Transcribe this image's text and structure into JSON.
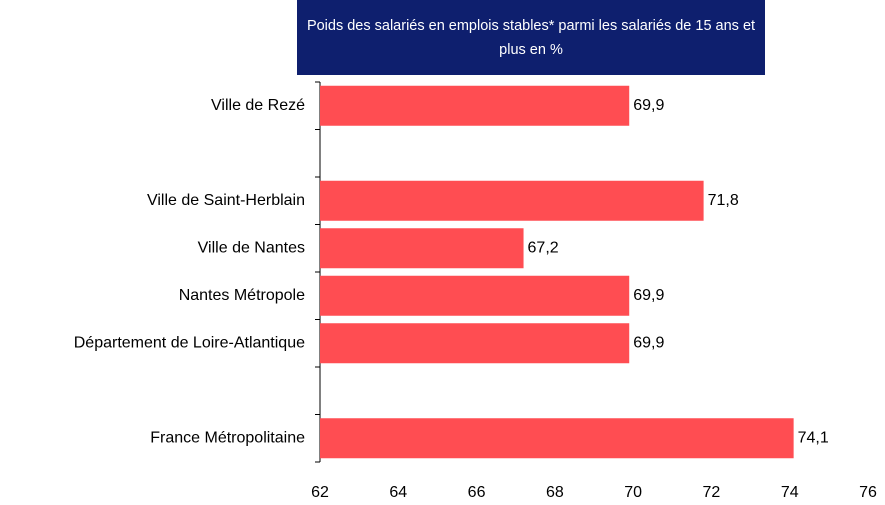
{
  "chart_data": {
    "type": "bar",
    "orientation": "horizontal",
    "title": "Poids des salariés en emplois stables* parmi les salariés de 15 ans et plus en %",
    "categories": [
      "Ville de Rezé",
      null,
      "Ville de Saint-Herblain",
      "Ville de Nantes",
      "Nantes Métropole",
      "Département de Loire-Atlantique",
      null,
      "France Métropolitaine"
    ],
    "values": [
      69.9,
      null,
      71.8,
      67.2,
      69.9,
      69.9,
      null,
      74.1
    ],
    "value_labels": [
      "69,9",
      null,
      "71,8",
      "67,2",
      "69,9",
      "69,9",
      null,
      "74,1"
    ],
    "color": "#ff4d52",
    "xlim": [
      62,
      76
    ],
    "xticks": [
      62,
      64,
      66,
      68,
      70,
      72,
      74,
      76
    ],
    "grid": false
  }
}
